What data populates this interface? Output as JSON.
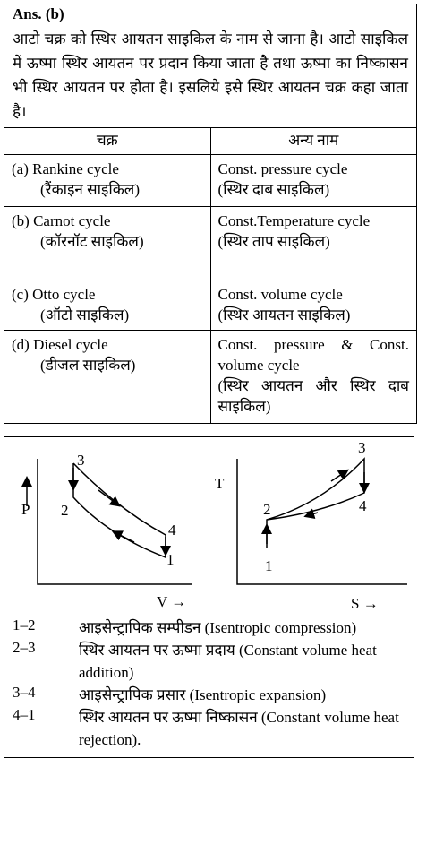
{
  "answer": {
    "label": "Ans. (b)",
    "text": "आटो चक्र को स्थिर आयतन साइकिल के नाम से जाना है। आटो साइकिल में ऊष्मा स्थिर आयतन पर प्रदान किया जाता है तथा ऊष्मा का निष्कासन भी स्थिर आयतन पर होता है। इसलिये इसे स्थिर आयतन चक्र कहा जाता है।"
  },
  "table": {
    "headers": [
      "चक्र",
      "अन्य नाम"
    ],
    "rows": [
      {
        "marker": "(a)",
        "name": "Rankine cycle",
        "hindi": "(रैंकाइन साइकिल)",
        "other": "Const. pressure cycle",
        "other_hindi": "(स्थिर दाब साइकिल)"
      },
      {
        "marker": "(b)",
        "name": "Carnot cycle",
        "hindi": "(कॉरनॉट साइकिल)",
        "other": "Const.Temperature cycle",
        "other_hindi": "(स्थिर ताप साइकिल)"
      },
      {
        "marker": "(c)",
        "name": "Otto cycle",
        "hindi": "(ऑटो साइकिल)",
        "other": "Const. volume cycle",
        "other_hindi": "(स्थिर आयतन साइकिल)"
      },
      {
        "marker": "(d)",
        "name": "Diesel cycle",
        "hindi": "(डीजल साइकिल)",
        "other": "Const. pressure & Const. volume cycle",
        "other_hindi": "(स्थिर आयतन और स्थिर दाब साइकिल)"
      }
    ]
  },
  "diagrams": [
    {
      "y_label": "P",
      "x_label": "V →",
      "points": [
        "1",
        "2",
        "3",
        "4"
      ]
    },
    {
      "y_label": "T",
      "x_label": "S →",
      "points": [
        "1",
        "2",
        "3",
        "4"
      ]
    }
  ],
  "processes": [
    {
      "code": "1–2",
      "text": "आइसेन्ट्रापिक सम्पीडन (Isentropic compression)"
    },
    {
      "code": "2–3",
      "text": "स्थिर आयतन पर ऊष्मा प्रदाय (Constant volume heat addition)"
    },
    {
      "code": "3–4",
      "text": "आइसेन्ट्रापिक प्रसार (Isentropic expansion)"
    },
    {
      "code": "4–1",
      "text": "स्थिर आयतन पर ऊष्मा निष्कासन (Constant volume heat rejection)."
    }
  ]
}
